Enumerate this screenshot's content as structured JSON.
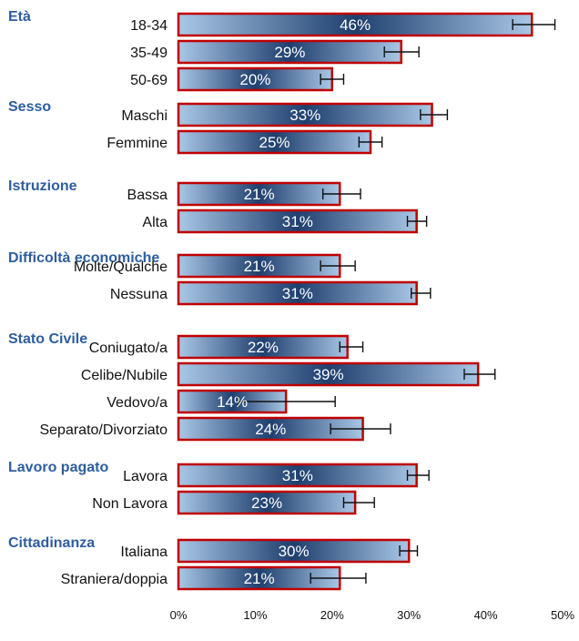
{
  "chart_data": {
    "type": "bar",
    "orientation": "horizontal",
    "xlim": [
      0,
      50
    ],
    "xticks": [
      "0%",
      "10%",
      "20%",
      "30%",
      "40%",
      "50%"
    ],
    "grid": false,
    "colors": {
      "bar_fill_dark": "#1f3f6e",
      "bar_fill_light": "#a9c7e6",
      "bar_border": "#c00000",
      "group_label": "#2e5e9e"
    },
    "groups": [
      {
        "name": "Età",
        "categories": [
          {
            "label": "18-34",
            "value": 46,
            "value_label": "46%",
            "err_low": 43.5,
            "err_high": 49
          },
          {
            "label": "35-49",
            "value": 29,
            "value_label": "29%",
            "err_low": 26.8,
            "err_high": 31.3
          },
          {
            "label": "50-69",
            "value": 20,
            "value_label": "20%",
            "err_low": 18.5,
            "err_high": 21.5
          }
        ]
      },
      {
        "name": "Sesso",
        "categories": [
          {
            "label": "Maschi",
            "value": 33,
            "value_label": "33%",
            "err_low": 31.5,
            "err_high": 35
          },
          {
            "label": "Femmine",
            "value": 25,
            "value_label": "25%",
            "err_low": 23.5,
            "err_high": 26.5
          }
        ]
      },
      {
        "name": "Istruzione",
        "categories": [
          {
            "label": "Bassa",
            "value": 21,
            "value_label": "21%",
            "err_low": 18.8,
            "err_high": 23.7
          },
          {
            "label": "Alta",
            "value": 31,
            "value_label": "31%",
            "err_low": 29.8,
            "err_high": 32.3
          }
        ]
      },
      {
        "name": "Difficoltà economiche",
        "categories": [
          {
            "label": "Molte/Qualche",
            "value": 21,
            "value_label": "21%",
            "err_low": 18.5,
            "err_high": 23
          },
          {
            "label": "Nessuna",
            "value": 31,
            "value_label": "31%",
            "err_low": 30.3,
            "err_high": 32.8
          }
        ]
      },
      {
        "name": "Stato Civile",
        "categories": [
          {
            "label": "Coniugato/a",
            "value": 22,
            "value_label": "22%",
            "err_low": 21,
            "err_high": 24
          },
          {
            "label": "Celibe/Nubile",
            "value": 39,
            "value_label": "39%",
            "err_low": 37.2,
            "err_high": 41.2
          },
          {
            "label": "Vedovo/a",
            "value": 14,
            "value_label": "14%",
            "err_low": 7.8,
            "err_high": 20.4
          },
          {
            "label": "Separato/Divorziato",
            "value": 24,
            "value_label": "24%",
            "err_low": 19.8,
            "err_high": 27.6
          }
        ]
      },
      {
        "name": "Lavoro pagato",
        "categories": [
          {
            "label": "Lavora",
            "value": 31,
            "value_label": "31%",
            "err_low": 29.8,
            "err_high": 32.6
          },
          {
            "label": "Non Lavora",
            "value": 23,
            "value_label": "23%",
            "err_low": 21.5,
            "err_high": 25.5
          }
        ]
      },
      {
        "name": "Cittadinanza",
        "categories": [
          {
            "label": "Italiana",
            "value": 30,
            "value_label": "30%",
            "err_low": 28.8,
            "err_high": 31.1
          },
          {
            "label": "Straniera/doppia",
            "value": 21,
            "value_label": "21%",
            "err_low": 17.2,
            "err_high": 24.4
          }
        ]
      }
    ]
  }
}
